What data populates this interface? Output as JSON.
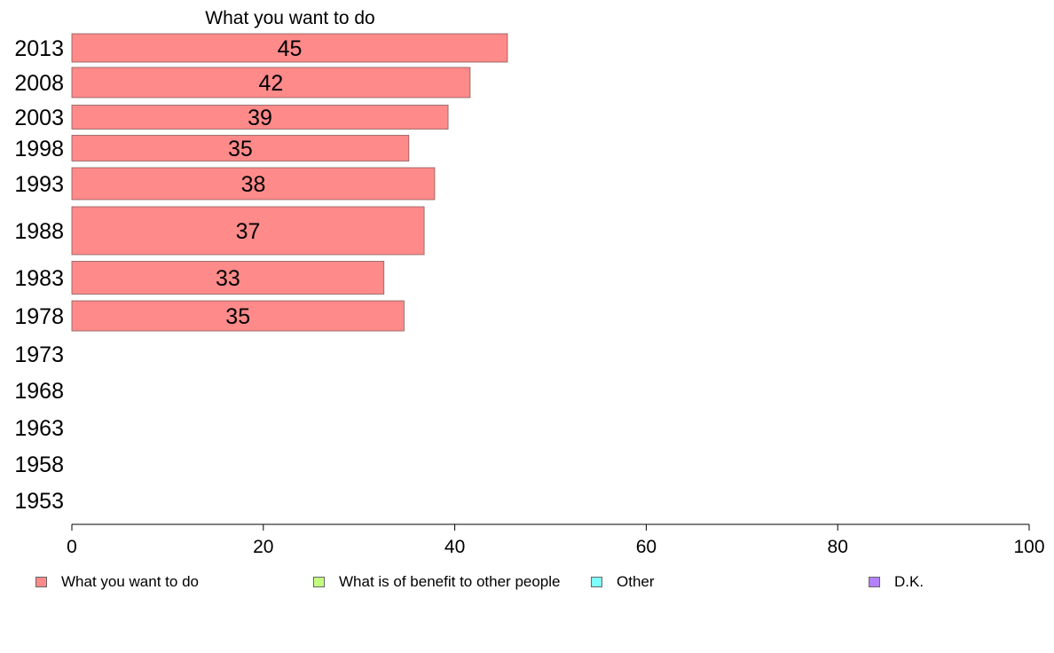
{
  "chart_data": {
    "type": "bar",
    "orientation": "horizontal",
    "title": "What you want to do",
    "categories": [
      "2013",
      "2008",
      "2003",
      "1998",
      "1993",
      "1988",
      "1983",
      "1978",
      "1973",
      "1968",
      "1963",
      "1958",
      "1953"
    ],
    "series": [
      {
        "name": "What you want to do",
        "color": "#ff8a8a",
        "values": [
          45,
          42,
          39,
          35,
          38,
          37,
          33,
          35,
          null,
          null,
          null,
          null,
          null
        ],
        "bar_values": [
          45.5,
          41.6,
          39.3,
          35.2,
          37.9,
          36.8,
          32.6,
          34.7,
          null,
          null,
          null,
          null,
          null
        ]
      }
    ],
    "xlim": [
      0,
      100
    ],
    "xticks": [
      "0",
      "20",
      "40",
      "60",
      "80",
      "100"
    ],
    "grid": false,
    "legend_position": "bottom"
  },
  "legend": [
    {
      "label": "What you want to do",
      "color": "#ff8a8a"
    },
    {
      "label": "What is of benefit to other people",
      "color": "#c2ff80"
    },
    {
      "label": "Other",
      "color": "#80ffff"
    },
    {
      "label": "D.K.",
      "color": "#b380ff"
    }
  ]
}
